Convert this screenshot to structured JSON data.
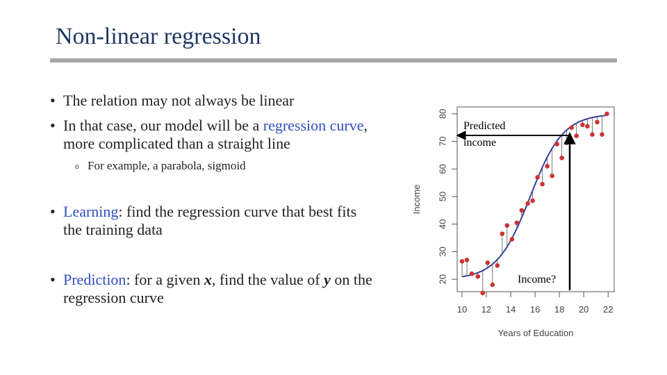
{
  "slide": {
    "title": "Non-linear regression",
    "bullets": {
      "b1": "The relation may not always be linear",
      "b2_pre": "In that case, our model will be a ",
      "b2_link1": "regression",
      "b2_link2": "curve",
      "b2_post": ", more complicated than a straight line",
      "sub1": "For example, a parabola, sigmoid",
      "b3_link": "Learning",
      "b3_post": ": find the regression curve that best fits the training data",
      "b4_link": "Prediction",
      "b4_mid1": ": for a given ",
      "b4_x": "x",
      "b4_mid2": ", find the value of ",
      "b4_y": "y",
      "b4_post": " on the regression curve"
    },
    "bullet_char": "•",
    "sub_bullet_char": "o"
  },
  "annotations": {
    "predicted_line1": "Predicted",
    "predicted_line2": "income",
    "income_q": "Income?"
  },
  "chart_data": {
    "type": "scatter",
    "xlabel": "Years of Education",
    "ylabel": "Income",
    "xticks": [
      10,
      12,
      14,
      16,
      18,
      20,
      22
    ],
    "yticks": [
      20,
      30,
      40,
      50,
      60,
      70,
      80
    ],
    "xlim": [
      9.6,
      22.5
    ],
    "ylim": [
      15.5,
      82.5
    ],
    "points": [
      {
        "x": 10.0,
        "y": 26.5
      },
      {
        "x": 10.4,
        "y": 27.0
      },
      {
        "x": 10.8,
        "y": 22.0
      },
      {
        "x": 11.3,
        "y": 21.0
      },
      {
        "x": 11.7,
        "y": 15.0
      },
      {
        "x": 12.1,
        "y": 26.0
      },
      {
        "x": 12.5,
        "y": 18.0
      },
      {
        "x": 12.9,
        "y": 25.0
      },
      {
        "x": 13.3,
        "y": 36.5
      },
      {
        "x": 13.7,
        "y": 39.5
      },
      {
        "x": 14.1,
        "y": 34.5
      },
      {
        "x": 14.5,
        "y": 40.5
      },
      {
        "x": 14.9,
        "y": 45.0
      },
      {
        "x": 15.4,
        "y": 47.5
      },
      {
        "x": 15.8,
        "y": 48.5
      },
      {
        "x": 16.2,
        "y": 57.0
      },
      {
        "x": 16.6,
        "y": 54.5
      },
      {
        "x": 17.0,
        "y": 61.0
      },
      {
        "x": 17.4,
        "y": 57.5
      },
      {
        "x": 17.8,
        "y": 69.0
      },
      {
        "x": 18.2,
        "y": 64.0
      },
      {
        "x": 18.6,
        "y": 69.5
      },
      {
        "x": 19.0,
        "y": 75.0
      },
      {
        "x": 19.4,
        "y": 72.0
      },
      {
        "x": 19.9,
        "y": 76.0
      },
      {
        "x": 20.3,
        "y": 75.5
      },
      {
        "x": 20.7,
        "y": 72.5
      },
      {
        "x": 21.1,
        "y": 77.0
      },
      {
        "x": 21.5,
        "y": 72.5
      },
      {
        "x": 21.9,
        "y": 80.0
      }
    ],
    "curve": {
      "lower": 20,
      "upper": 80,
      "midpoint": 15.6,
      "scale": 1.35
    }
  },
  "colors": {
    "point": "#cc3333",
    "curve": "#3a3f96",
    "residual": "#555555",
    "frame": "#555555",
    "title": "#1f3864",
    "accent": "#2e4fbf"
  }
}
